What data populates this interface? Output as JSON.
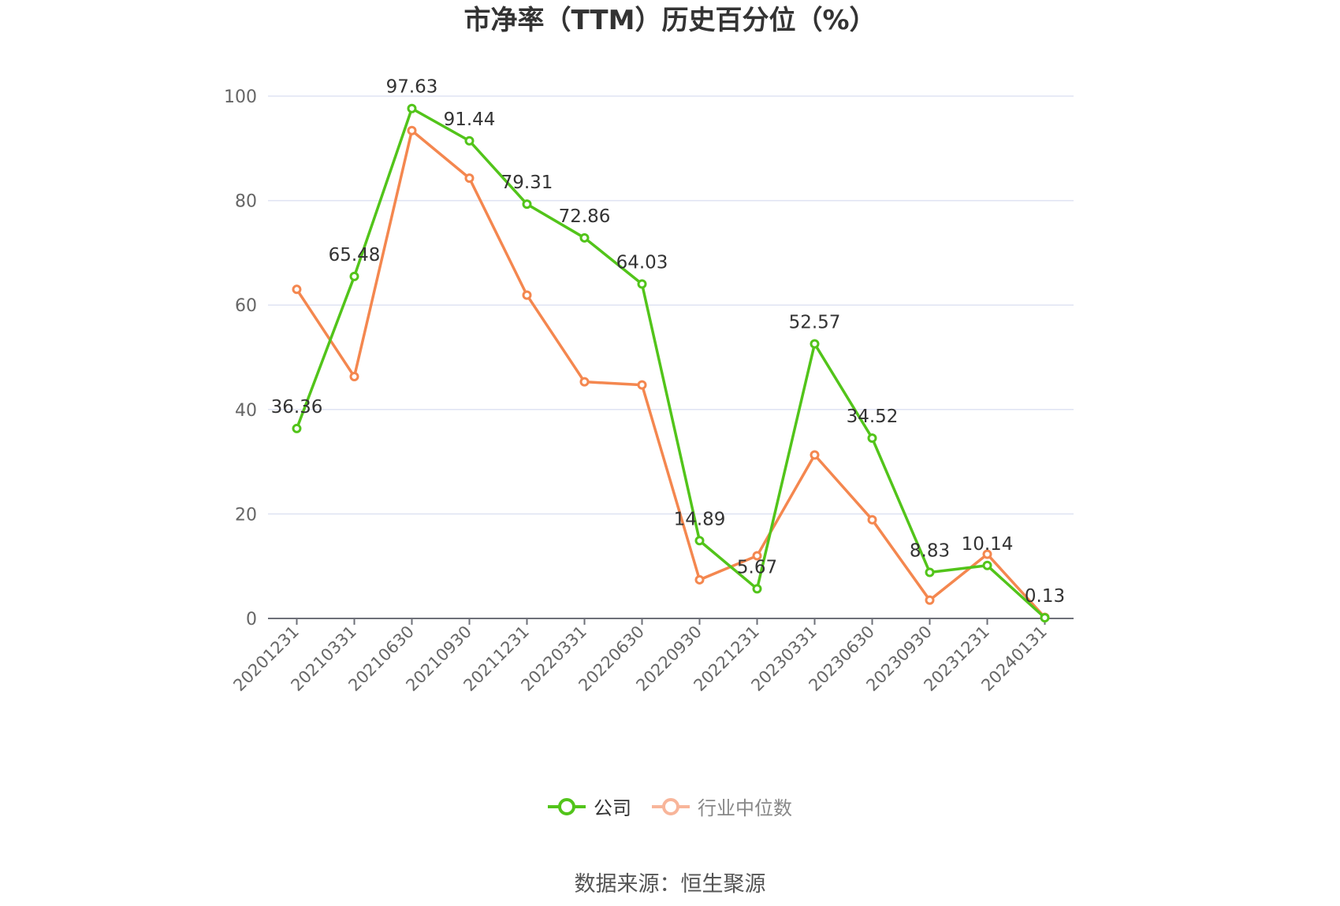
{
  "chart_data": {
    "type": "line",
    "title": "市净率（TTM）历史百分位（%）",
    "categories": [
      "20201231",
      "20210331",
      "20210630",
      "20210930",
      "20211231",
      "20220331",
      "20220630",
      "20220930",
      "20221231",
      "20230331",
      "20230630",
      "20230930",
      "20231231",
      "20240131"
    ],
    "series": [
      {
        "name": "公司",
        "color": "#52c41a",
        "values": [
          36.36,
          65.48,
          97.63,
          91.44,
          79.31,
          72.86,
          64.03,
          14.89,
          5.67,
          52.57,
          34.52,
          8.83,
          10.14,
          0.13
        ],
        "labels_shown": true
      },
      {
        "name": "行业中位数",
        "color": "#f4874f",
        "values": [
          63.0,
          46.3,
          93.4,
          84.3,
          61.9,
          45.3,
          44.7,
          7.4,
          12.0,
          31.3,
          18.9,
          3.5,
          12.3,
          0.2
        ],
        "labels_shown": false
      }
    ],
    "ylim": [
      0,
      100
    ],
    "yticks": [
      0,
      20,
      40,
      60,
      80,
      100
    ],
    "grid": true,
    "legend_position": "bottom"
  },
  "legend": {
    "company": "公司",
    "industry": "行业中位数"
  },
  "source": "数据来源：恒生聚源"
}
